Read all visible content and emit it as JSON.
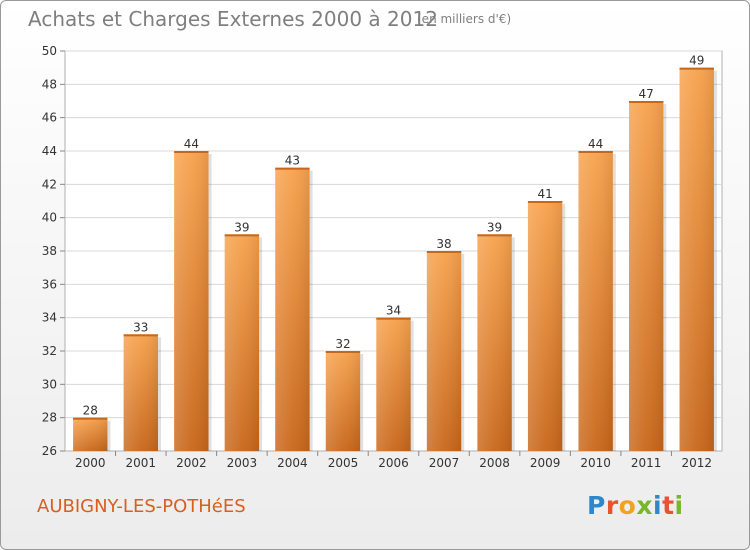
{
  "header": {
    "title": "Achats et Charges Externes 2000 à 2012",
    "unit": "(en milliers d'€)"
  },
  "footer": {
    "commune": "AUBIGNY-LES-POTHéES",
    "logo_letters": [
      "P",
      "r",
      "o",
      "x",
      "i",
      "t",
      "i"
    ],
    "logo_colors": [
      "#2f86c9",
      "#e8532f",
      "#f2a125",
      "#7ab62c",
      "#2f86c9",
      "#e8532f",
      "#7ab62c"
    ]
  },
  "chart_data": {
    "type": "bar",
    "categories": [
      "2000",
      "2001",
      "2002",
      "2003",
      "2004",
      "2005",
      "2006",
      "2007",
      "2008",
      "2009",
      "2010",
      "2011",
      "2012"
    ],
    "values": [
      28,
      33,
      44,
      39,
      43,
      32,
      34,
      38,
      39,
      41,
      44,
      47,
      49
    ],
    "data_labels": [
      "28",
      "33",
      "44",
      "39",
      "43",
      "32",
      "34",
      "38",
      "39",
      "41",
      "44",
      "47",
      "49"
    ],
    "ylim": [
      26,
      50
    ],
    "yticks": [
      26,
      28,
      30,
      32,
      34,
      36,
      38,
      40,
      42,
      44,
      46,
      48,
      50
    ],
    "ytick_labels": [
      "26",
      "28",
      "30",
      "32",
      "34",
      "36",
      "38",
      "40",
      "42",
      "44",
      "46",
      "48",
      "50"
    ],
    "grid": true,
    "bar_color": "#f28a2a",
    "xlabel": "",
    "ylabel": ""
  }
}
